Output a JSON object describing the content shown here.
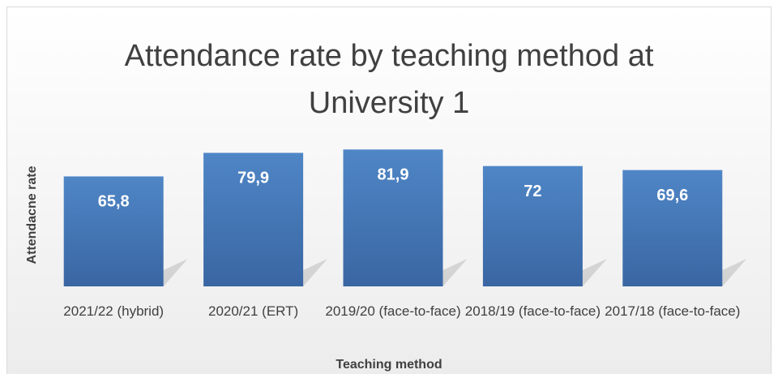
{
  "chart_data": {
    "type": "bar",
    "title": "Attendance rate by teaching method at University 1",
    "x_label": "Teaching method",
    "y_label": "Attendacne rate",
    "categories": [
      "2021/22 (hybrid)",
      "2020/21 (ERT)",
      "2019/20 (face-to-face)",
      "2018/19 (face-to-face)",
      "2017/18 (face-to-face)"
    ],
    "values": [
      65.8,
      79.9,
      81.9,
      72,
      69.6
    ],
    "value_labels": [
      "65,8",
      "79,9",
      "81,9",
      "72",
      "69,6"
    ],
    "color": "#4a7ebb",
    "ylim": [
      0,
      100
    ]
  }
}
